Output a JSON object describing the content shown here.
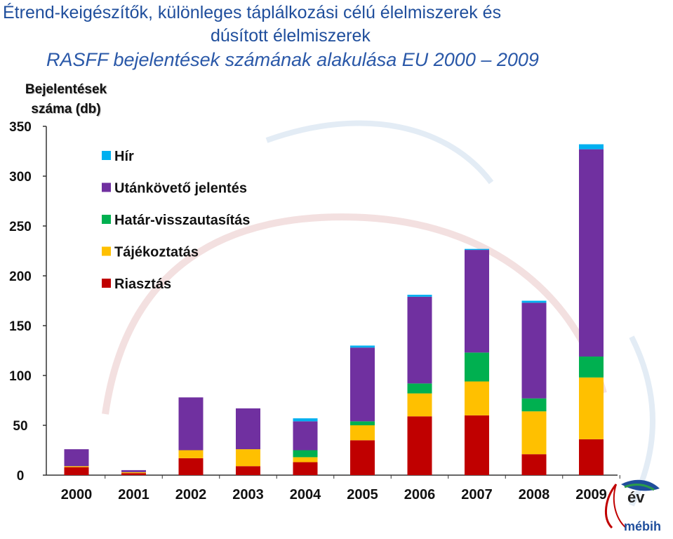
{
  "title": {
    "line1": "Étrend-keigészítők, különleges táplálkozási célú élelmiszerek és",
    "line2": "dúsított élelmiszerek"
  },
  "subtitle": "RASFF bejelentések számának alakulása EU 2000 – 2009",
  "logo": {
    "ev": "év",
    "mebih": "mébih"
  },
  "chart_data": {
    "type": "bar",
    "stacked": true,
    "categories": [
      "2000",
      "2001",
      "2002",
      "2003",
      "2004",
      "2005",
      "2006",
      "2007",
      "2008",
      "2009"
    ],
    "ylabel": "Bejelentések száma (db)",
    "ylim": [
      0,
      350
    ],
    "yticks": [
      0,
      50,
      100,
      150,
      200,
      250,
      300,
      350
    ],
    "legend_position": "top-left",
    "series": [
      {
        "name": "Riasztás",
        "color": "#c00000",
        "values": [
          8,
          2,
          17,
          9,
          13,
          35,
          59,
          60,
          21,
          36
        ]
      },
      {
        "name": "Tájékoztatás",
        "color": "#ffc000",
        "values": [
          1,
          1,
          8,
          17,
          5,
          15,
          23,
          34,
          43,
          62
        ]
      },
      {
        "name": "Határ-visszautasítás",
        "color": "#00b050",
        "values": [
          0,
          0,
          0,
          0,
          7,
          4,
          10,
          29,
          13,
          21
        ]
      },
      {
        "name": "Utánkövető jelentés",
        "color": "#7030a0",
        "values": [
          17,
          2,
          53,
          41,
          29,
          74,
          87,
          103,
          96,
          208
        ]
      },
      {
        "name": "Hír",
        "color": "#00b0f0",
        "values": [
          0,
          0,
          0,
          0,
          3,
          2,
          2,
          1,
          2,
          5
        ]
      }
    ]
  }
}
